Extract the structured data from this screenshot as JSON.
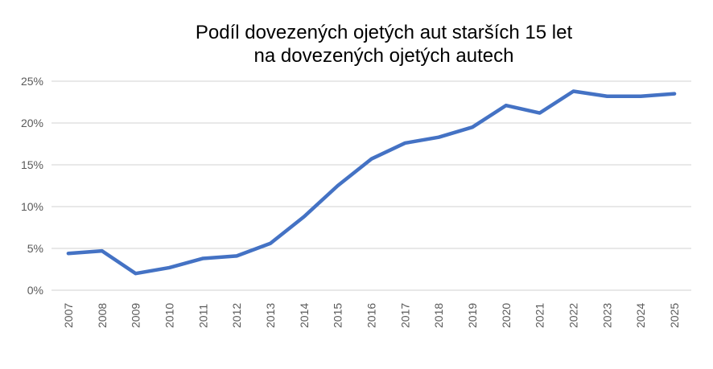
{
  "title": {
    "line1": "Podíl dovezených ojetých aut starších 15 let",
    "line2": "na dovezených ojetých autech"
  },
  "chart_data": {
    "type": "line",
    "title": "Podíl dovezených ojetých aut starších 15 let na dovezených ojetých autech",
    "categories": [
      "2007",
      "2008",
      "2009",
      "2010",
      "2011",
      "2012",
      "2013",
      "2014",
      "2015",
      "2016",
      "2017",
      "2018",
      "2019",
      "2020",
      "2021",
      "2022",
      "2023",
      "2024",
      "2025"
    ],
    "values": [
      4.4,
      4.7,
      2.0,
      2.7,
      3.8,
      4.1,
      5.6,
      8.8,
      12.5,
      15.7,
      17.6,
      18.3,
      19.5,
      22.1,
      21.2,
      23.8,
      23.2,
      23.2,
      23.5
    ],
    "unit": "%",
    "xlabel": "",
    "ylabel": "",
    "ylim": [
      0,
      25
    ],
    "yticks": [
      0,
      5,
      10,
      15,
      20,
      25
    ],
    "ytick_labels": [
      "0%",
      "5%",
      "10%",
      "15%",
      "20%",
      "25%"
    ],
    "grid": true,
    "legend": false
  },
  "colors": {
    "line": "#4472C4",
    "gridline": "#D9D9D9",
    "tick_label": "#595959",
    "title_text": "#000000",
    "background": "#FFFFFF"
  }
}
